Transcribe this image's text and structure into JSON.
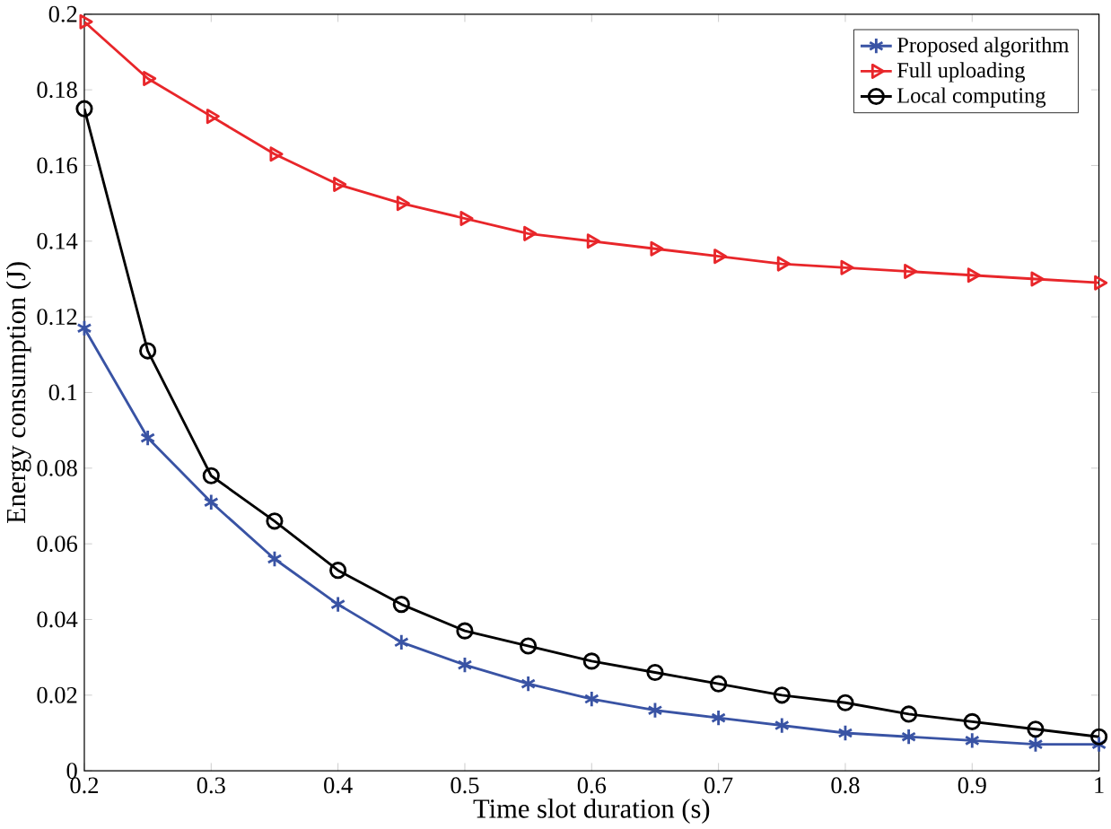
{
  "chart_data": {
    "type": "line",
    "xlabel": "Time slot duration (s)",
    "ylabel": "Energy consumption (J)",
    "x": [
      0.2,
      0.25,
      0.3,
      0.35,
      0.4,
      0.45,
      0.5,
      0.55,
      0.6,
      0.65,
      0.7,
      0.75,
      0.8,
      0.85,
      0.9,
      0.95,
      1
    ],
    "series": [
      {
        "name": "Proposed algorithm",
        "color": "#3953a4",
        "marker": "cross",
        "values": [
          0.117,
          0.088,
          0.071,
          0.056,
          0.044,
          0.034,
          0.028,
          0.023,
          0.019,
          0.016,
          0.014,
          0.012,
          0.01,
          0.009,
          0.008,
          0.007,
          0.007
        ]
      },
      {
        "name": "Full uploading",
        "color": "#e8262a",
        "marker": "triangle",
        "values": [
          0.198,
          0.183,
          0.173,
          0.163,
          0.155,
          0.15,
          0.146,
          0.142,
          0.14,
          0.138,
          0.136,
          0.134,
          0.133,
          0.132,
          0.131,
          0.13,
          0.129
        ]
      },
      {
        "name": "Local computing",
        "color": "#000000",
        "marker": "circle",
        "values": [
          0.175,
          0.111,
          0.078,
          0.066,
          0.053,
          0.044,
          0.037,
          0.033,
          0.029,
          0.026,
          0.023,
          0.02,
          0.018,
          0.015,
          0.013,
          0.011,
          0.009
        ]
      }
    ],
    "xlim": [
      0.2,
      1
    ],
    "ylim": [
      0,
      0.2
    ],
    "xticks": [
      0.2,
      0.3,
      0.4,
      0.5,
      0.6,
      0.7,
      0.8,
      0.9,
      1
    ],
    "yticks": [
      0,
      0.02,
      0.04,
      0.06,
      0.08,
      0.1,
      0.12,
      0.14,
      0.16,
      0.18,
      0.2
    ],
    "legend": "top right",
    "grid": false,
    "line_style": "solid"
  }
}
